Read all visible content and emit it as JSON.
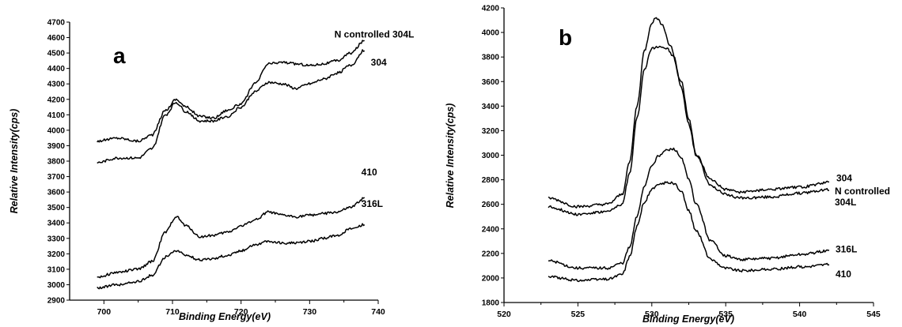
{
  "chart_data": [
    {
      "type": "line",
      "panel_label": "a",
      "xlabel": "Binding Energy(eV)",
      "ylabel": "Relative Intensity(cps)",
      "xlim": [
        695,
        740
      ],
      "ylim": [
        2900,
        4700
      ],
      "xticks": [
        700,
        710,
        720,
        730,
        740
      ],
      "yticks": [
        2900,
        3000,
        3100,
        3200,
        3300,
        3400,
        3500,
        3600,
        3700,
        3800,
        3900,
        4000,
        4100,
        4200,
        4300,
        4400,
        4500,
        4600,
        4700
      ],
      "series": [
        {
          "name": "N controlled 304L",
          "x": [
            699,
            702,
            705,
            707,
            709,
            710.5,
            712,
            714,
            716,
            718,
            720,
            722,
            724,
            726,
            728,
            730,
            732,
            734,
            736,
            738
          ],
          "y": [
            3930,
            3950,
            3930,
            3970,
            4130,
            4200,
            4150,
            4090,
            4080,
            4130,
            4170,
            4300,
            4430,
            4440,
            4430,
            4420,
            4430,
            4450,
            4500,
            4580
          ]
        },
        {
          "name": "304",
          "x": [
            699,
            702,
            705,
            707,
            709,
            710.5,
            712,
            714,
            716,
            718,
            720,
            722,
            724,
            726,
            728,
            730,
            732,
            734,
            736,
            738
          ],
          "y": [
            3790,
            3820,
            3820,
            3880,
            4100,
            4180,
            4120,
            4060,
            4060,
            4090,
            4150,
            4250,
            4310,
            4300,
            4270,
            4300,
            4330,
            4370,
            4420,
            4520
          ]
        },
        {
          "name": "410",
          "x": [
            699,
            702,
            705,
            707,
            709,
            710.5,
            712,
            714,
            716,
            718,
            720,
            722,
            724,
            726,
            728,
            730,
            732,
            734,
            736,
            738
          ],
          "y": [
            3050,
            3080,
            3100,
            3150,
            3340,
            3440,
            3380,
            3310,
            3320,
            3340,
            3380,
            3420,
            3470,
            3450,
            3440,
            3450,
            3460,
            3470,
            3500,
            3560
          ]
        },
        {
          "name": "316L",
          "x": [
            699,
            702,
            705,
            707,
            709,
            710.5,
            712,
            714,
            716,
            718,
            720,
            722,
            724,
            726,
            728,
            730,
            732,
            734,
            736,
            738
          ],
          "y": [
            2980,
            3000,
            3020,
            3060,
            3180,
            3220,
            3190,
            3160,
            3170,
            3190,
            3220,
            3260,
            3280,
            3270,
            3270,
            3280,
            3300,
            3320,
            3360,
            3390
          ]
        }
      ]
    },
    {
      "type": "line",
      "panel_label": "b",
      "xlabel": "Binding Energy(eV)",
      "ylabel": "Relative Intensity(cps)",
      "xlim": [
        520,
        545
      ],
      "ylim": [
        1800,
        4200
      ],
      "xticks": [
        520,
        525,
        530,
        535,
        540,
        545
      ],
      "yticks": [
        1800,
        2000,
        2200,
        2400,
        2600,
        2800,
        3000,
        3200,
        3400,
        3600,
        3800,
        4000,
        4200
      ],
      "series": [
        {
          "name": "304",
          "x": [
            523,
            525,
            527,
            528,
            528.5,
            529,
            529.5,
            530,
            530.3,
            530.7,
            531.2,
            532,
            532.5,
            533,
            534,
            535,
            536,
            538,
            540,
            542
          ],
          "y": [
            2650,
            2580,
            2600,
            2680,
            2950,
            3400,
            3850,
            4080,
            4120,
            4070,
            3900,
            3600,
            3300,
            3000,
            2800,
            2720,
            2700,
            2720,
            2740,
            2780
          ]
        },
        {
          "name": "N controlled\n304L",
          "x": [
            523,
            525,
            527,
            528,
            528.5,
            529,
            529.5,
            530,
            530.5,
            531,
            531.5,
            532,
            532.5,
            533,
            534,
            535,
            536,
            538,
            540,
            542
          ],
          "y": [
            2580,
            2520,
            2540,
            2600,
            2850,
            3300,
            3700,
            3870,
            3890,
            3870,
            3800,
            3550,
            3250,
            3000,
            2750,
            2680,
            2650,
            2660,
            2690,
            2720
          ]
        },
        {
          "name": "316L",
          "x": [
            523,
            525,
            527,
            528,
            528.5,
            529,
            529.5,
            530,
            530.5,
            531,
            531.5,
            532,
            532.5,
            533,
            534,
            535,
            536,
            538,
            540,
            542
          ],
          "y": [
            2140,
            2080,
            2080,
            2120,
            2250,
            2500,
            2750,
            2920,
            3000,
            3040,
            3050,
            2980,
            2800,
            2600,
            2300,
            2180,
            2150,
            2160,
            2190,
            2220
          ]
        },
        {
          "name": "410",
          "x": [
            523,
            525,
            527,
            528,
            528.5,
            529,
            529.5,
            530,
            530.5,
            531,
            531.5,
            532,
            532.5,
            533,
            534,
            535,
            536,
            538,
            540,
            542
          ],
          "y": [
            2010,
            1980,
            1990,
            2030,
            2170,
            2420,
            2620,
            2720,
            2760,
            2780,
            2770,
            2700,
            2550,
            2380,
            2150,
            2080,
            2060,
            2070,
            2090,
            2110
          ]
        }
      ]
    }
  ]
}
